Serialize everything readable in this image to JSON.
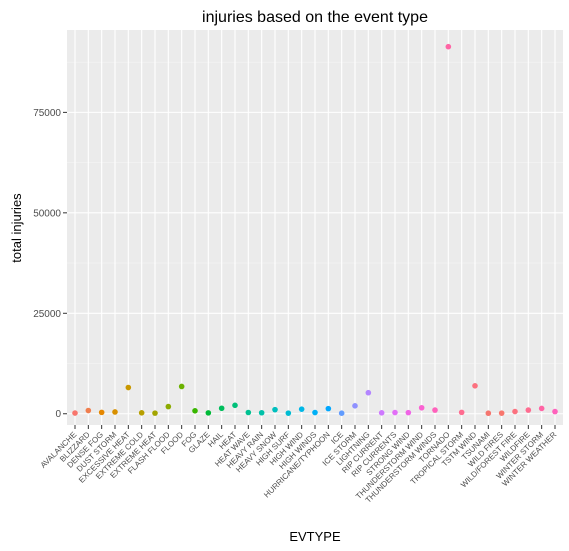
{
  "chart_data": {
    "type": "scatter",
    "title": "injuries based on the event type",
    "xlabel": "EVTYPE",
    "ylabel": "total injuries",
    "ylim": [
      -2800,
      95500
    ],
    "yticks": [
      0,
      25000,
      50000,
      75000
    ],
    "ytick_labels": [
      "0",
      "25000",
      "50000",
      "75000"
    ],
    "grid": true,
    "legend": "none",
    "categories": [
      "AVALANCHE",
      "BLIZZARD",
      "DENSE FOG",
      "DUST STORM",
      "EXCESSIVE HEAT",
      "EXTREME COLD",
      "EXTREME HEAT",
      "FLASH FLOOD",
      "FLOOD",
      "FOG",
      "GLAZE",
      "HAIL",
      "HEAT",
      "HEAT WAVE",
      "HEAVY RAIN",
      "HEAVY SNOW",
      "HIGH SURF",
      "HIGH WIND",
      "HIGH WINDS",
      "HURRICANE/TYPHOON",
      "ICE",
      "ICE STORM",
      "LIGHTNING",
      "RIP CURRENT",
      "RIP CURRENTS",
      "STRONG WIND",
      "THUNDERSTORM WIND",
      "THUNDERSTORM WINDS",
      "TORNADO",
      "TROPICAL STORM",
      "TSTM WIND",
      "TSUNAMI",
      "WILD FIRES",
      "WILD/FOREST FIRE",
      "WILDFIRE",
      "WINTER STORM",
      "WINTER WEATHER"
    ],
    "values": [
      170,
      805,
      342,
      440,
      6525,
      231,
      155,
      1777,
      6789,
      734,
      216,
      1361,
      2100,
      309,
      251,
      1021,
      152,
      1137,
      302,
      1275,
      137,
      1975,
      5230,
      232,
      297,
      280,
      1488,
      908,
      91346,
      340,
      6957,
      129,
      150,
      545,
      911,
      1321,
      538
    ],
    "colors": [
      "#F8766D",
      "#F07E4E",
      "#E58700",
      "#D89000",
      "#C99800",
      "#B79F00",
      "#A3A500",
      "#8CAB00",
      "#6BB100",
      "#39B600",
      "#00BA38",
      "#00BD5C",
      "#00C079",
      "#00C192",
      "#00C1A9",
      "#00BFBE",
      "#00BCD3",
      "#00B7E6",
      "#00B0F6",
      "#00A7FF",
      "#619CFF",
      "#8F91FF",
      "#B385FF",
      "#CE79FF",
      "#E26EF7",
      "#F064E6",
      "#FA62D2",
      "#FF62BC",
      "#FF65A5",
      "#FF6C90",
      "#FC717F",
      "#F5766F",
      "#F8766D",
      "#FC717F",
      "#FF6C90",
      "#FF65A5",
      "#FF62BC"
    ]
  }
}
